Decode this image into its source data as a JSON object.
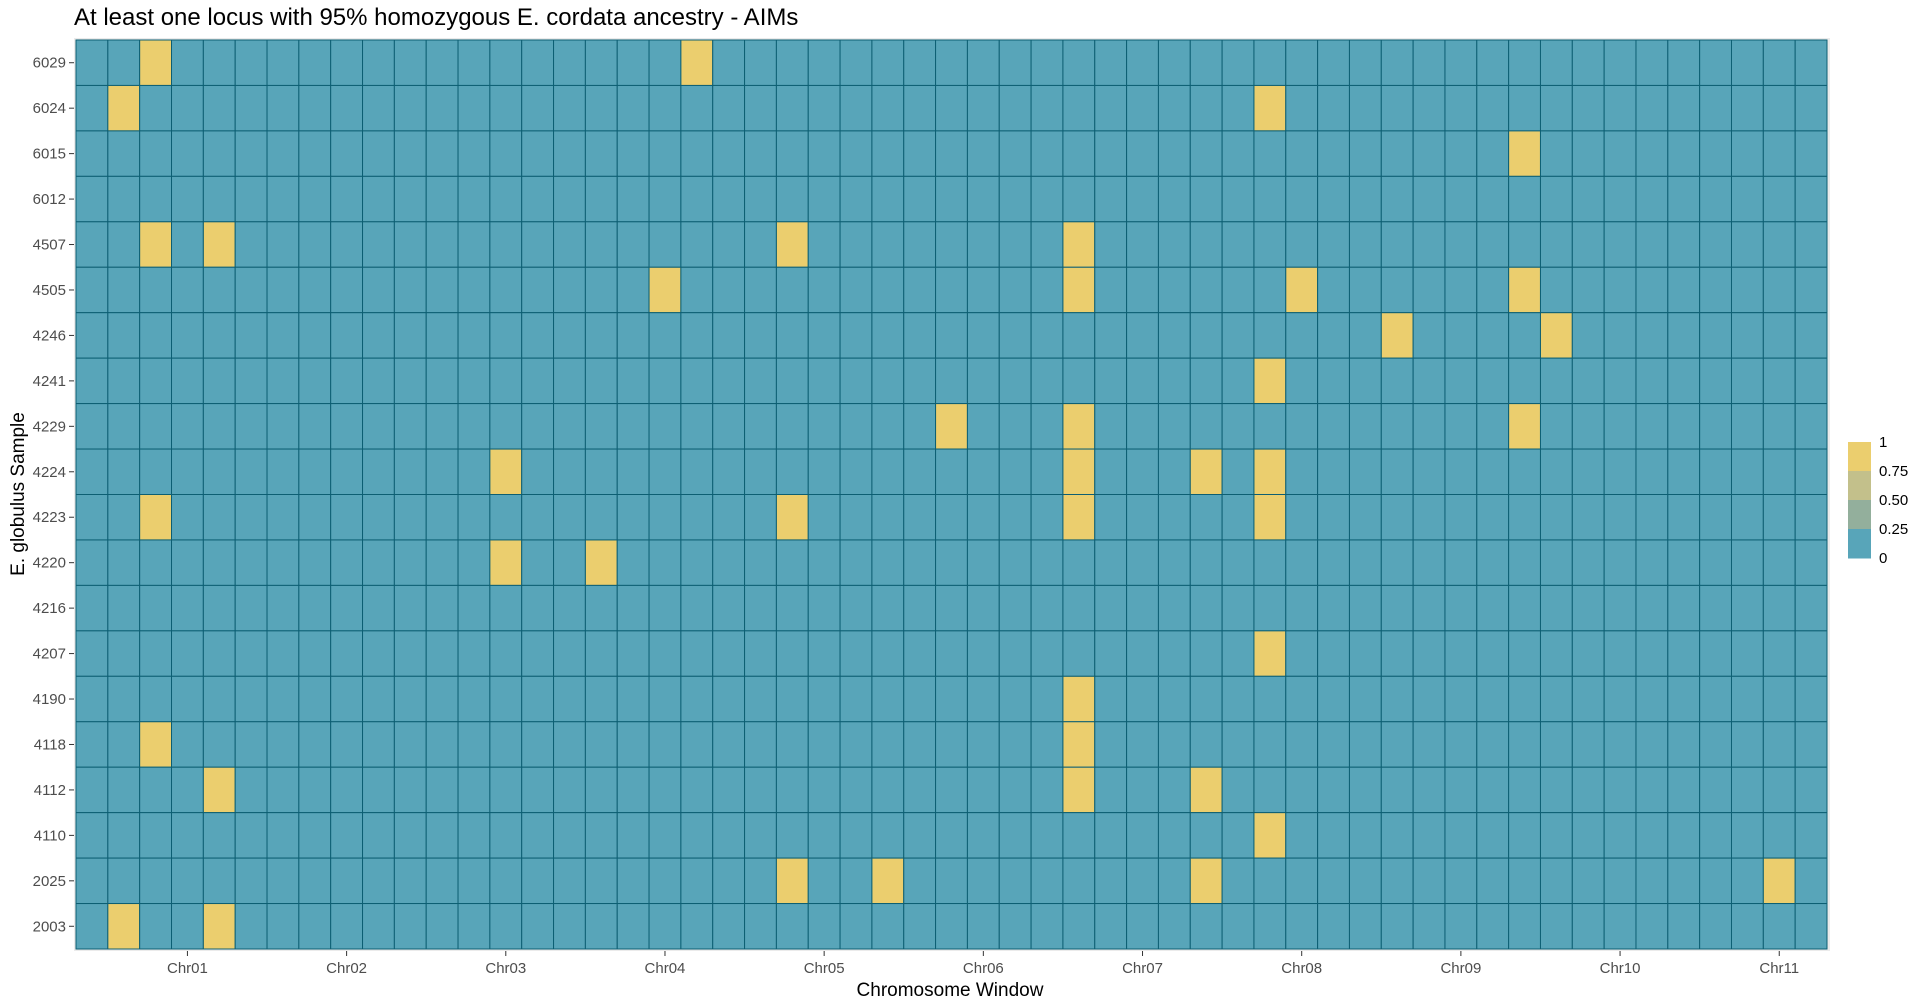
{
  "chart_data": {
    "type": "heatmap",
    "title": "At least one locus with 95% homozygous E. cordata ancestry - AIMs",
    "xlabel": "Chromosome Window",
    "ylabel": "E. globulus Sample",
    "column_count": 55,
    "x_tick_labels": [
      "Chr01",
      "Chr02",
      "Chr03",
      "Chr04",
      "Chr05",
      "Chr06",
      "Chr07",
      "Chr08",
      "Chr09",
      "Chr10",
      "Chr11"
    ],
    "x_tick_columns": [
      3.5,
      8.5,
      13.5,
      18.5,
      23.5,
      28.5,
      33.5,
      38.5,
      43.5,
      48.5,
      53.5
    ],
    "samples": [
      "6029",
      "6024",
      "6015",
      "6012",
      "4507",
      "4505",
      "4246",
      "4241",
      "4229",
      "4224",
      "4223",
      "4220",
      "4216",
      "4207",
      "4190",
      "4118",
      "4112",
      "4110",
      "2025",
      "2003"
    ],
    "value_range": [
      0,
      1
    ],
    "background_value": 0,
    "cells_value_1": {
      "6029": [
        3,
        20
      ],
      "6024": [
        2,
        38
      ],
      "6015": [
        46
      ],
      "6012": [],
      "4507": [
        3,
        5,
        23,
        32
      ],
      "4505": [
        19,
        32,
        39,
        46
      ],
      "4246": [
        42,
        47
      ],
      "4241": [
        38
      ],
      "4229": [
        28,
        32,
        46
      ],
      "4224": [
        14,
        32,
        36,
        38
      ],
      "4223": [
        3,
        23,
        32,
        38
      ],
      "4220": [
        14,
        17
      ],
      "4216": [],
      "4207": [
        38
      ],
      "4190": [
        32
      ],
      "4118": [
        3,
        32
      ],
      "4112": [
        5,
        32,
        36
      ],
      "4110": [
        38
      ],
      "2025": [
        23,
        26,
        36,
        54
      ],
      "2003": [
        2,
        5
      ]
    },
    "legend": {
      "position": "right",
      "labels": [
        "1",
        "0.75",
        "0.50",
        "0.25",
        "0"
      ],
      "colors": [
        "#EBCE6E",
        "#C3C08B",
        "#93AF9C",
        "#58A5B9"
      ]
    },
    "colors": {
      "low": "#58A5B9",
      "high": "#EBCE6E",
      "cell_border": "#0D5F73"
    },
    "grid": true
  }
}
